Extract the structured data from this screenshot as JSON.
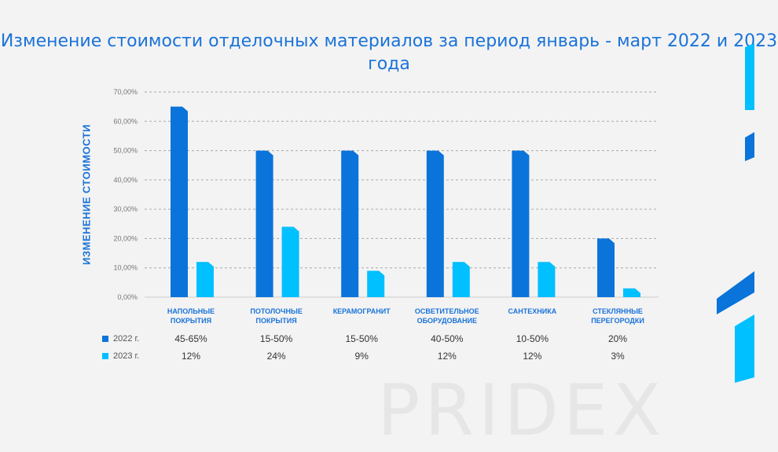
{
  "chart_data": {
    "type": "bar",
    "title": "Изменение стоимости отделочных материалов за период январь - март 2022 и 2023 года",
    "ylabel": "ИЗМЕНЕНИЕ СТОИМОСТИ",
    "ylim": [
      0,
      70
    ],
    "yticks": [
      "0,00%",
      "10,00%",
      "20,00%",
      "30,00%",
      "40,00%",
      "50,00%",
      "60,00%",
      "70,00%"
    ],
    "categories": [
      "НАПОЛЬНЫЕ ПОКРЫТИЯ",
      "ПОТОЛОЧНЫЕ ПОКРЫТИЯ",
      "КЕРАМОГРАНИТ",
      "ОСВЕТИТЕЛЬНОЕ ОБОРУДОВАНИЕ",
      "САНТЕХНИКА",
      "СТЕКЛЯННЫЕ ПЕРЕГОРОДКИ"
    ],
    "series": [
      {
        "name": "2022 г.",
        "color": "#0a74da",
        "values": [
          65,
          50,
          50,
          50,
          50,
          20
        ],
        "labels": [
          "45-65%",
          "15-50%",
          "15-50%",
          "40-50%",
          "10-50%",
          "20%"
        ]
      },
      {
        "name": "2023 г.",
        "color": "#00c0ff",
        "values": [
          12,
          24,
          9,
          12,
          12,
          3
        ],
        "labels": [
          "12%",
          "24%",
          "9%",
          "12%",
          "12%",
          "3%"
        ]
      }
    ],
    "grid": true
  },
  "watermark": "PRIDEX"
}
